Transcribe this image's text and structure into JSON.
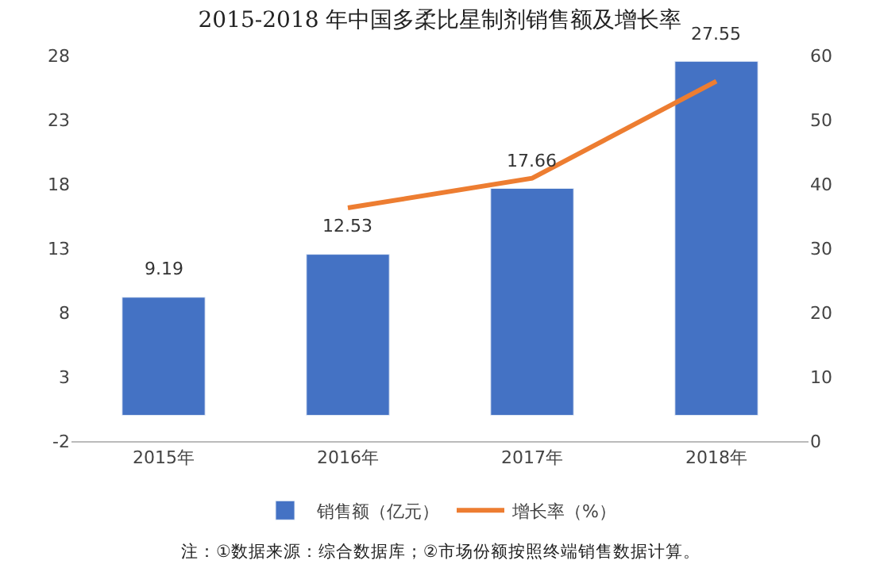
{
  "chart_data": {
    "type": "bar",
    "title": "2015-2018 年中国多柔比星制剂销售额及增长率",
    "categories": [
      "2015年",
      "2016年",
      "2017年",
      "2018年"
    ],
    "series": [
      {
        "name": "销售额（亿元）",
        "color": "#4472c4",
        "values": [
          9.19,
          12.53,
          17.66,
          27.55
        ],
        "value_labels": [
          "9.19",
          "12.53",
          "17.66",
          "27.55"
        ]
      },
      {
        "name": "增长率（%）",
        "type": "line",
        "axis": "y2",
        "color": "#ed7d31",
        "values": [
          null,
          36.3,
          40.9,
          56.0
        ]
      }
    ],
    "ylim": [
      -2,
      28
    ],
    "yticks": [
      -2,
      3,
      8,
      13,
      18,
      23,
      28
    ],
    "y2lim": [
      0,
      60
    ],
    "y2ticks": [
      0,
      10,
      20,
      30,
      40,
      50,
      60
    ],
    "legend": "bottom",
    "marker": "none",
    "line_style": "solid",
    "annotations": [
      "注：①数据来源：综合数据库；②市场份额按照终端销售数据计算。"
    ]
  }
}
